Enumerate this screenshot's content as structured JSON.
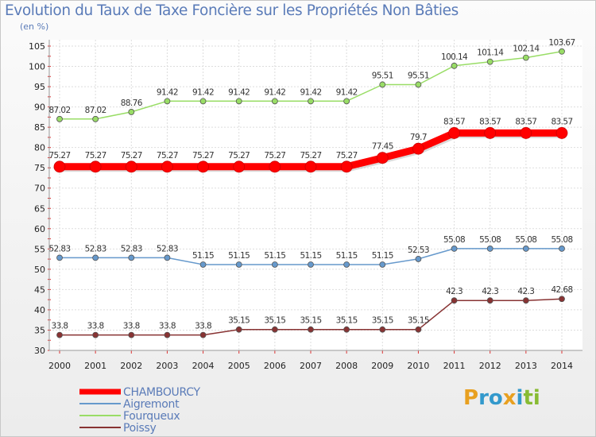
{
  "chart_data": {
    "type": "line",
    "title": "Evolution du Taux de Taxe Foncière sur les Propriétés Non Bâties",
    "unit_label": "(en %)",
    "x": [
      2000,
      2001,
      2002,
      2003,
      2004,
      2005,
      2006,
      2007,
      2008,
      2009,
      2010,
      2011,
      2012,
      2013,
      2014
    ],
    "ylim": [
      30,
      105
    ],
    "yticks": [
      30,
      35,
      40,
      45,
      50,
      55,
      60,
      65,
      70,
      75,
      80,
      85,
      90,
      95,
      100,
      105
    ],
    "grid": true,
    "legend_position": "bottom-left",
    "series": [
      {
        "name": "CHAMBOURCY",
        "color": "#ff0000",
        "values": [
          75.27,
          75.27,
          75.27,
          75.27,
          75.27,
          75.27,
          75.27,
          75.27,
          75.27,
          77.45,
          79.7,
          83.57,
          83.57,
          83.57,
          83.57
        ],
        "labels": [
          "75.27",
          "75.27",
          "75.27",
          "75.27",
          "75.27",
          "75.27",
          "75.27",
          "75.27",
          "75.27",
          "77.45",
          "79.7",
          "83.57",
          "83.57",
          "83.57",
          "83.57"
        ]
      },
      {
        "name": "Aigremont",
        "color": "#6699cc",
        "values": [
          52.83,
          52.83,
          52.83,
          52.83,
          51.15,
          51.15,
          51.15,
          51.15,
          51.15,
          51.15,
          52.53,
          55.08,
          55.08,
          55.08,
          55.08
        ],
        "labels": [
          "52.83",
          "52.83",
          "52.83",
          "52.83",
          "51.15",
          "51.15",
          "51.15",
          "51.15",
          "51.15",
          "51.15",
          "52.53",
          "55.08",
          "55.08",
          "55.08",
          "55.08"
        ]
      },
      {
        "name": "Fourqueux",
        "color": "#99dd66",
        "values": [
          87.02,
          87.02,
          88.76,
          91.42,
          91.42,
          91.42,
          91.42,
          91.42,
          91.42,
          95.51,
          95.51,
          100.14,
          101.14,
          102.14,
          103.67
        ],
        "labels": [
          "87.02",
          "87.02",
          "88.76",
          "91.42",
          "91.42",
          "91.42",
          "91.42",
          "91.42",
          "91.42",
          "95.51",
          "95.51",
          "100.14",
          "101.14",
          "102.14",
          "103.67"
        ]
      },
      {
        "name": "Poissy",
        "color": "#883333",
        "values": [
          33.8,
          33.8,
          33.8,
          33.8,
          33.8,
          35.15,
          35.15,
          35.15,
          35.15,
          35.15,
          35.15,
          42.3,
          42.3,
          42.3,
          42.68
        ],
        "labels": [
          "33.8",
          "33.8",
          "33.8",
          "33.8",
          "33.8",
          "35.15",
          "35.15",
          "35.15",
          "35.15",
          "35.15",
          "35.15",
          "42.3",
          "42.3",
          "42.3",
          "42.68"
        ]
      }
    ]
  },
  "logo": {
    "letters": [
      "P",
      "r",
      "o",
      "x",
      "i",
      "t",
      "i"
    ],
    "colors": [
      "#e8a020",
      "#3399cc",
      "#3399cc",
      "#e8a020",
      "#3399cc",
      "#88bb33",
      "#88bb33"
    ]
  }
}
